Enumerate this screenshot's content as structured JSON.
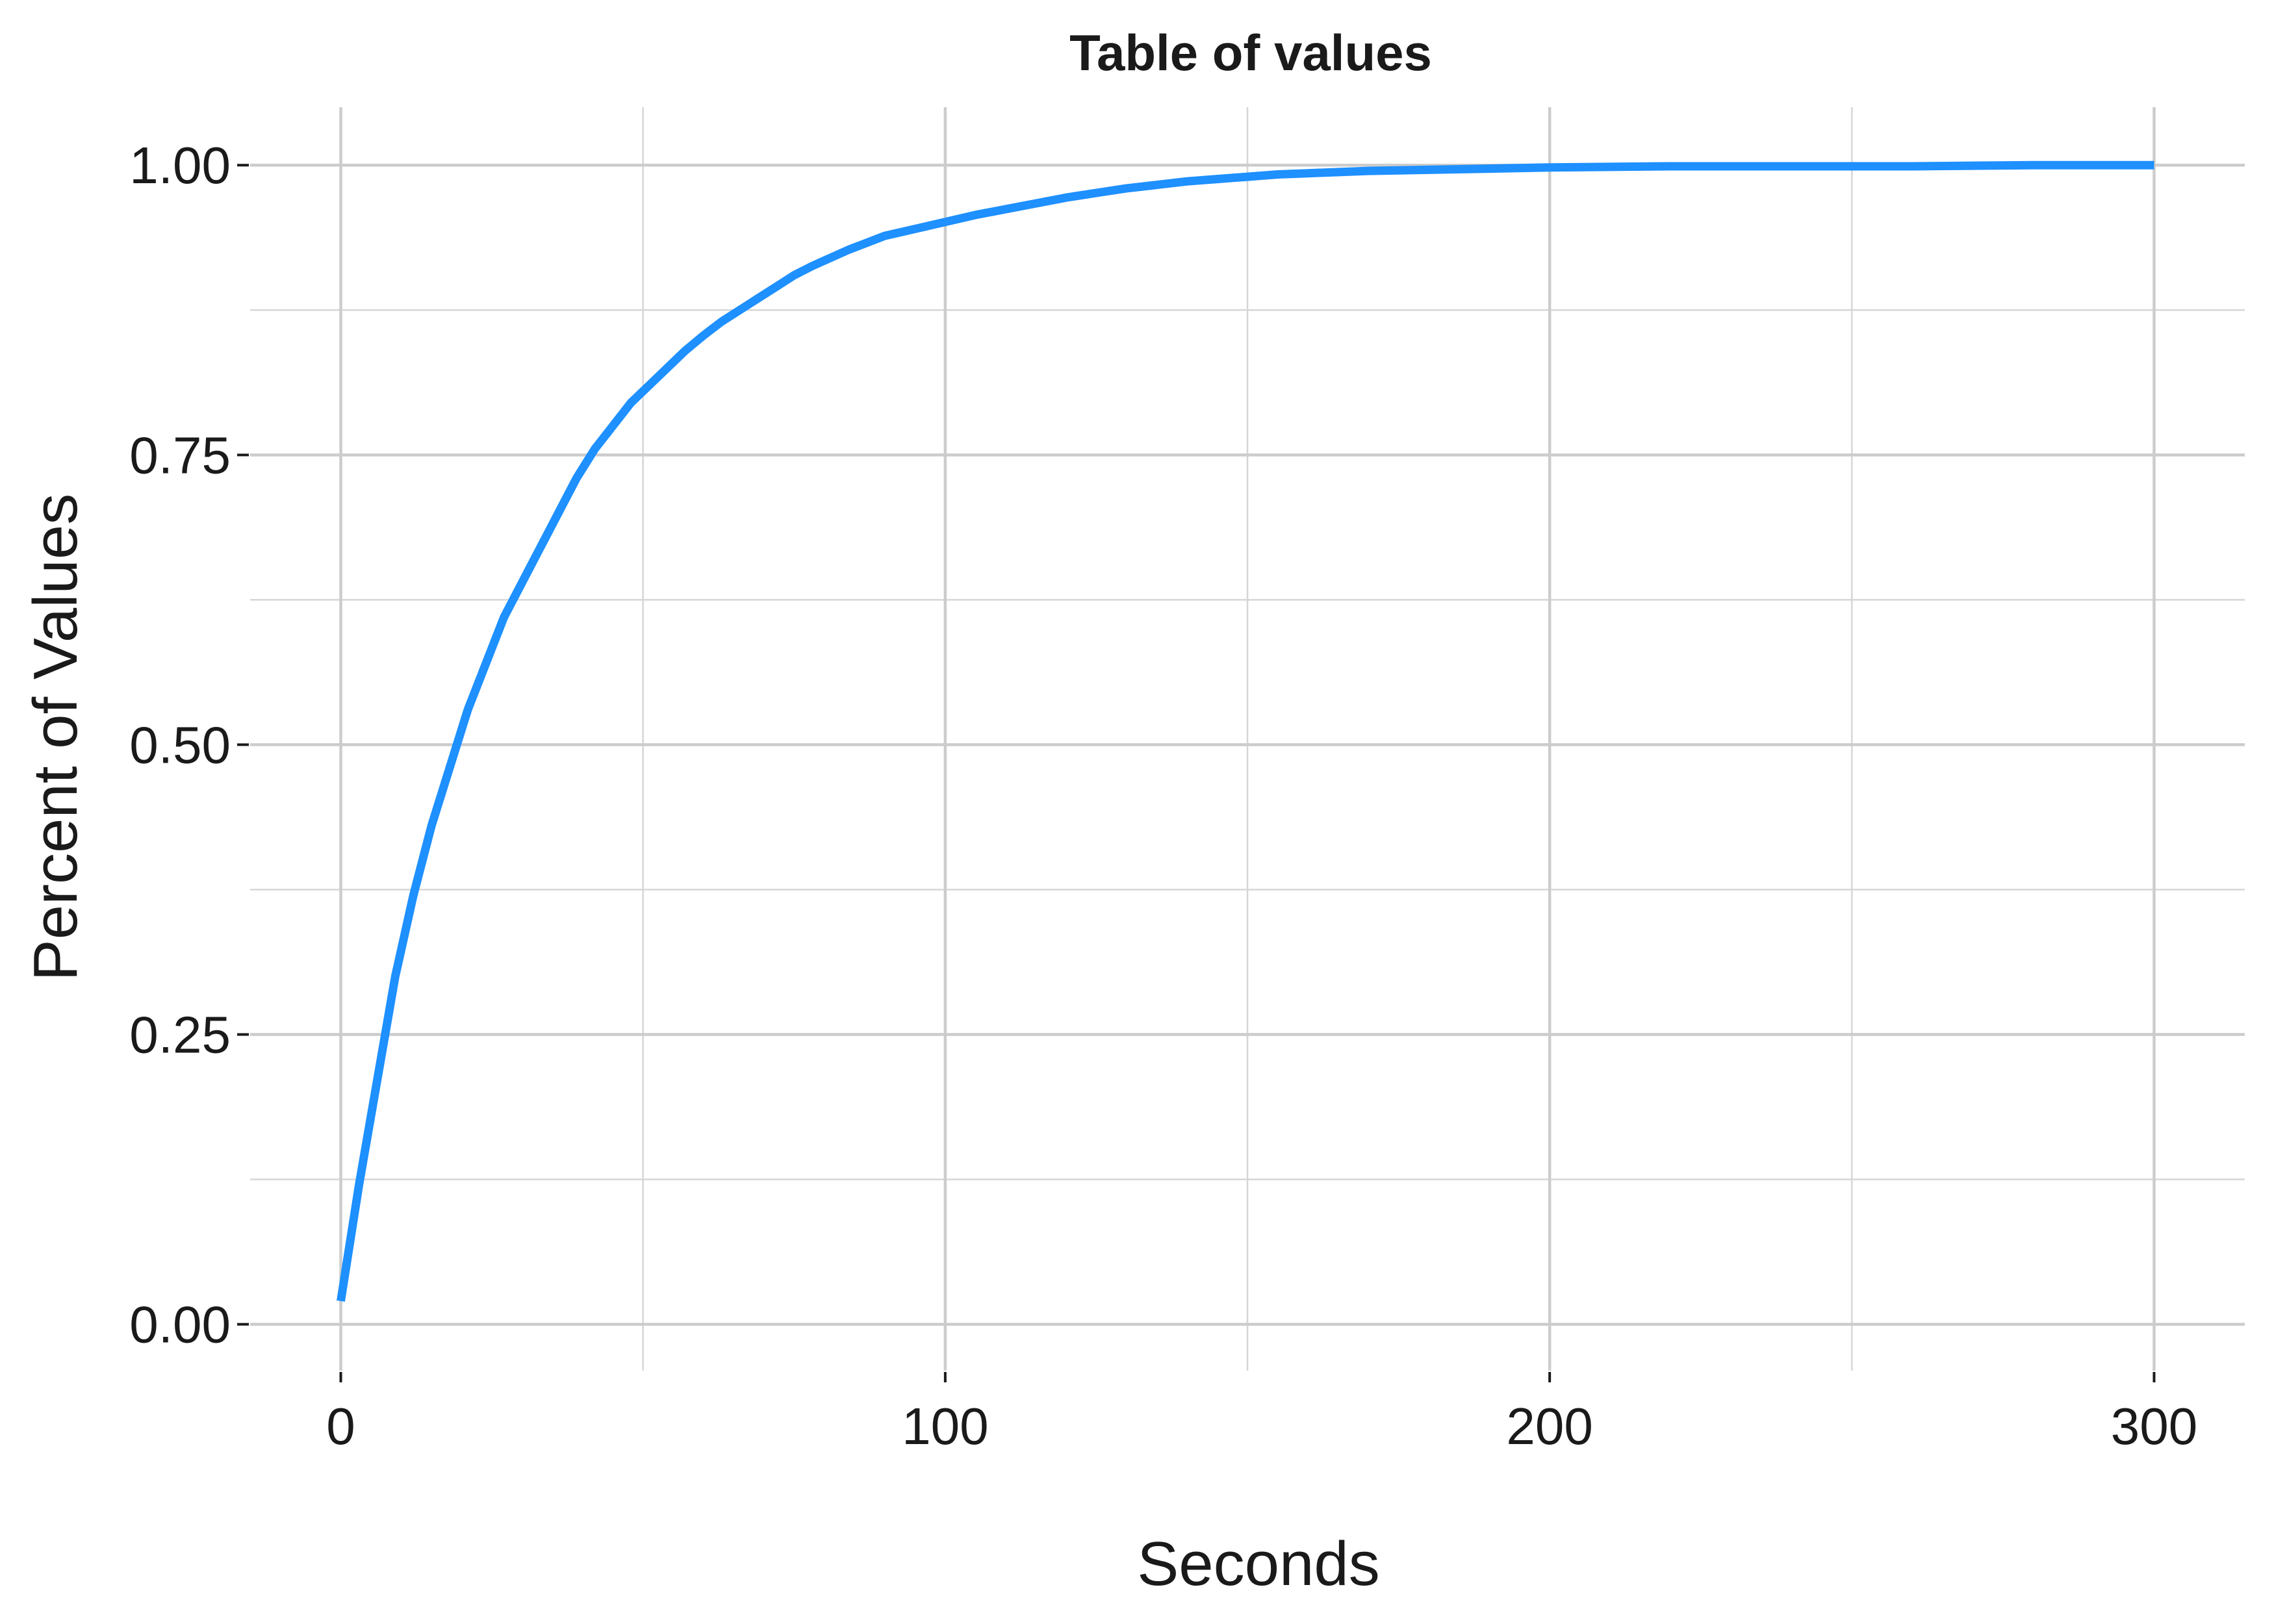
{
  "chart_data": {
    "type": "line",
    "title": "Table of values",
    "xlabel": "Seconds",
    "ylabel": "Percent of Values",
    "xlim": [
      -15,
      315
    ],
    "ylim": [
      -0.04,
      1.05
    ],
    "x_ticks": [
      0,
      100,
      200,
      300
    ],
    "x_tick_labels": [
      "0",
      "100",
      "200",
      "300"
    ],
    "x_minor_ticks": [
      50,
      150,
      250
    ],
    "y_ticks": [
      0,
      0.25,
      0.5,
      0.75,
      1
    ],
    "y_tick_labels": [
      "0.00",
      "0.25",
      "0.50",
      "0.75",
      "1.00"
    ],
    "y_minor_ticks": [
      0.125,
      0.375,
      0.625,
      0.875
    ],
    "grid": true,
    "legend": "none",
    "colors": {
      "series": "#1e90ff",
      "grid": "#cccccc",
      "text": "#1a1a1a"
    },
    "series": [
      {
        "x": [
          0,
          3,
          6,
          9,
          12,
          15,
          18,
          21,
          24,
          27,
          30,
          33,
          36,
          39,
          42,
          45,
          48,
          51,
          54,
          57,
          60,
          63,
          66,
          69,
          72,
          75,
          78,
          81,
          84,
          87,
          90,
          95,
          100,
          105,
          110,
          115,
          120,
          125,
          130,
          135,
          140,
          145,
          150,
          155,
          160,
          170,
          180,
          190,
          200,
          220,
          240,
          260,
          280,
          300
        ],
        "y": [
          0.02,
          0.12,
          0.21,
          0.3,
          0.37,
          0.43,
          0.48,
          0.53,
          0.57,
          0.61,
          0.64,
          0.67,
          0.7,
          0.73,
          0.755,
          0.775,
          0.795,
          0.81,
          0.825,
          0.84,
          0.853,
          0.865,
          0.875,
          0.885,
          0.895,
          0.905,
          0.913,
          0.92,
          0.927,
          0.933,
          0.939,
          0.945,
          0.951,
          0.957,
          0.962,
          0.967,
          0.972,
          0.976,
          0.98,
          0.983,
          0.986,
          0.988,
          0.99,
          0.992,
          0.993,
          0.995,
          0.996,
          0.997,
          0.998,
          0.999,
          0.999,
          0.999,
          1,
          1
        ]
      }
    ]
  }
}
